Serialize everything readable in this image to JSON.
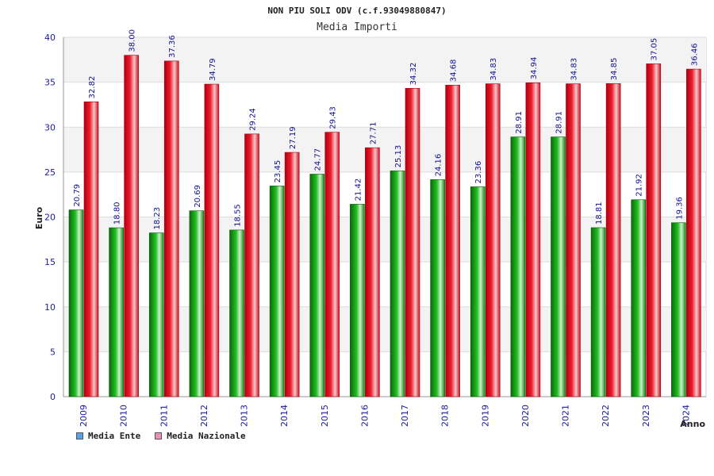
{
  "colors": {
    "ente": "#15a015",
    "nazionale": "#e01020",
    "legend_ente": "#5aa0e8",
    "legend_nazionale": "#e890b8"
  },
  "legend": {
    "ente": "Media Ente",
    "nazionale": "Media Nazionale"
  },
  "chart_data": {
    "type": "bar",
    "title": "NON PIU SOLI ODV (c.f.93049880847)",
    "subtitle": "Media Importi",
    "xlabel": "Anno",
    "ylabel": "Euro",
    "ylim": [
      0,
      40
    ],
    "yticks": [
      "0",
      "5",
      "10",
      "15",
      "20",
      "25",
      "30",
      "35",
      "40"
    ],
    "grid": true,
    "legend_position": "bottom-left",
    "categories": [
      "2009",
      "2010",
      "2011",
      "2012",
      "2013",
      "2014",
      "2015",
      "2016",
      "2017",
      "2018",
      "2019",
      "2020",
      "2021",
      "2022",
      "2023",
      "2024"
    ],
    "series": [
      {
        "name": "Media Ente",
        "values": [
          20.79,
          18.8,
          18.23,
          20.69,
          18.55,
          23.45,
          24.77,
          21.42,
          25.13,
          24.16,
          23.36,
          28.91,
          28.91,
          18.81,
          21.92,
          19.36
        ],
        "labels": [
          "20.79",
          "18.80",
          "18.23",
          "20.69",
          "18.55",
          "23.45",
          "24.77",
          "21.42",
          "25.13",
          "24.16",
          "23.36",
          "28.91",
          "28.91",
          "18.81",
          "21.92",
          "19.36"
        ]
      },
      {
        "name": "Media Nazionale",
        "values": [
          32.82,
          38.0,
          37.36,
          34.79,
          29.24,
          27.19,
          29.43,
          27.71,
          34.32,
          34.68,
          34.83,
          34.94,
          34.83,
          34.85,
          37.05,
          36.46
        ],
        "labels": [
          "32.82",
          "38.00",
          "37.36",
          "34.79",
          "29.24",
          "27.19",
          "29.43",
          "27.71",
          "34.32",
          "34.68",
          "34.83",
          "34.94",
          "34.83",
          "34.85",
          "37.05",
          "36.46"
        ]
      }
    ]
  }
}
